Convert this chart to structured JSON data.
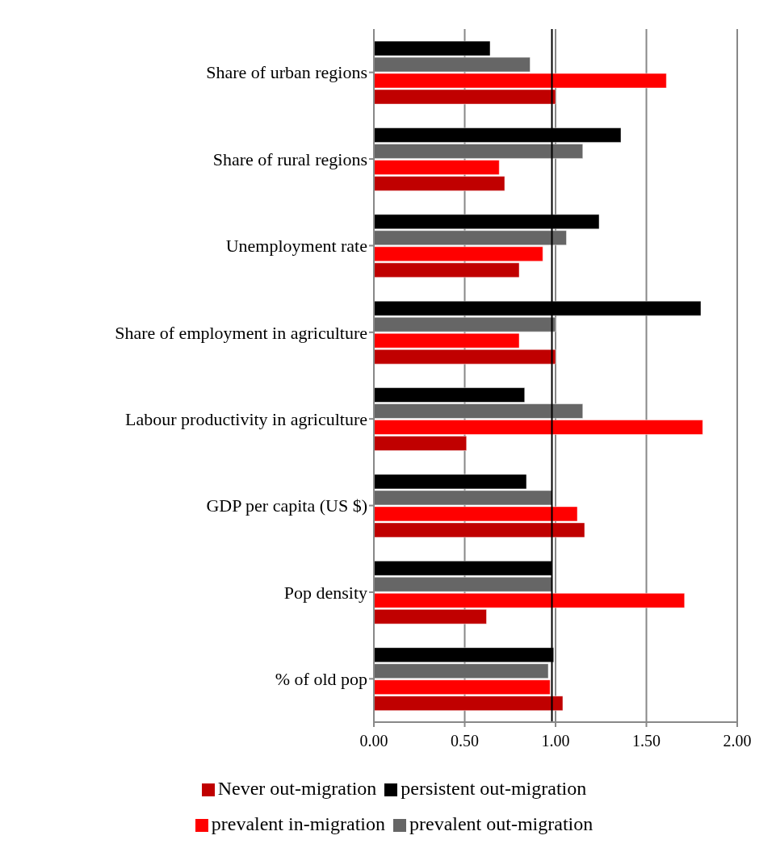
{
  "chart_data": {
    "type": "bar",
    "orientation": "horizontal",
    "categories": [
      "Share of urban regions",
      "Share of rural regions",
      "Unemployment rate",
      "Share of employment in agriculture",
      "Labour productivity in agriculture",
      "GDP per capita (US $)",
      "Pop density",
      "% of old pop"
    ],
    "series": [
      {
        "name": "persistent out-migration",
        "color": "#000000",
        "values": [
          0.64,
          1.36,
          1.24,
          1.8,
          0.83,
          0.84,
          0.98,
          0.99
        ]
      },
      {
        "name": "prevalent out-migration",
        "color": "#666666",
        "values": [
          0.86,
          1.15,
          1.06,
          1.0,
          1.15,
          0.98,
          0.98,
          0.96
        ]
      },
      {
        "name": "prevalent in-migration",
        "color": "#ff0000",
        "values": [
          1.61,
          0.69,
          0.93,
          0.8,
          1.81,
          1.12,
          1.71,
          0.97
        ]
      },
      {
        "name": "Never out-migration",
        "color": "#c00000",
        "values": [
          1.0,
          0.72,
          0.8,
          1.0,
          0.51,
          1.16,
          0.62,
          1.04
        ]
      }
    ],
    "xlim": [
      0,
      2
    ],
    "xticks": [
      {
        "value": 0,
        "label": "0.00"
      },
      {
        "value": 0.5,
        "label": "0.50"
      },
      {
        "value": 1,
        "label": "1.00"
      },
      {
        "value": 1.5,
        "label": "1.50"
      },
      {
        "value": 2,
        "label": "2.00"
      }
    ],
    "ref_lines": [
      {
        "axis": "x",
        "value": 0.98,
        "color": "#000000"
      }
    ],
    "grid": "x",
    "legend": "bottom"
  }
}
